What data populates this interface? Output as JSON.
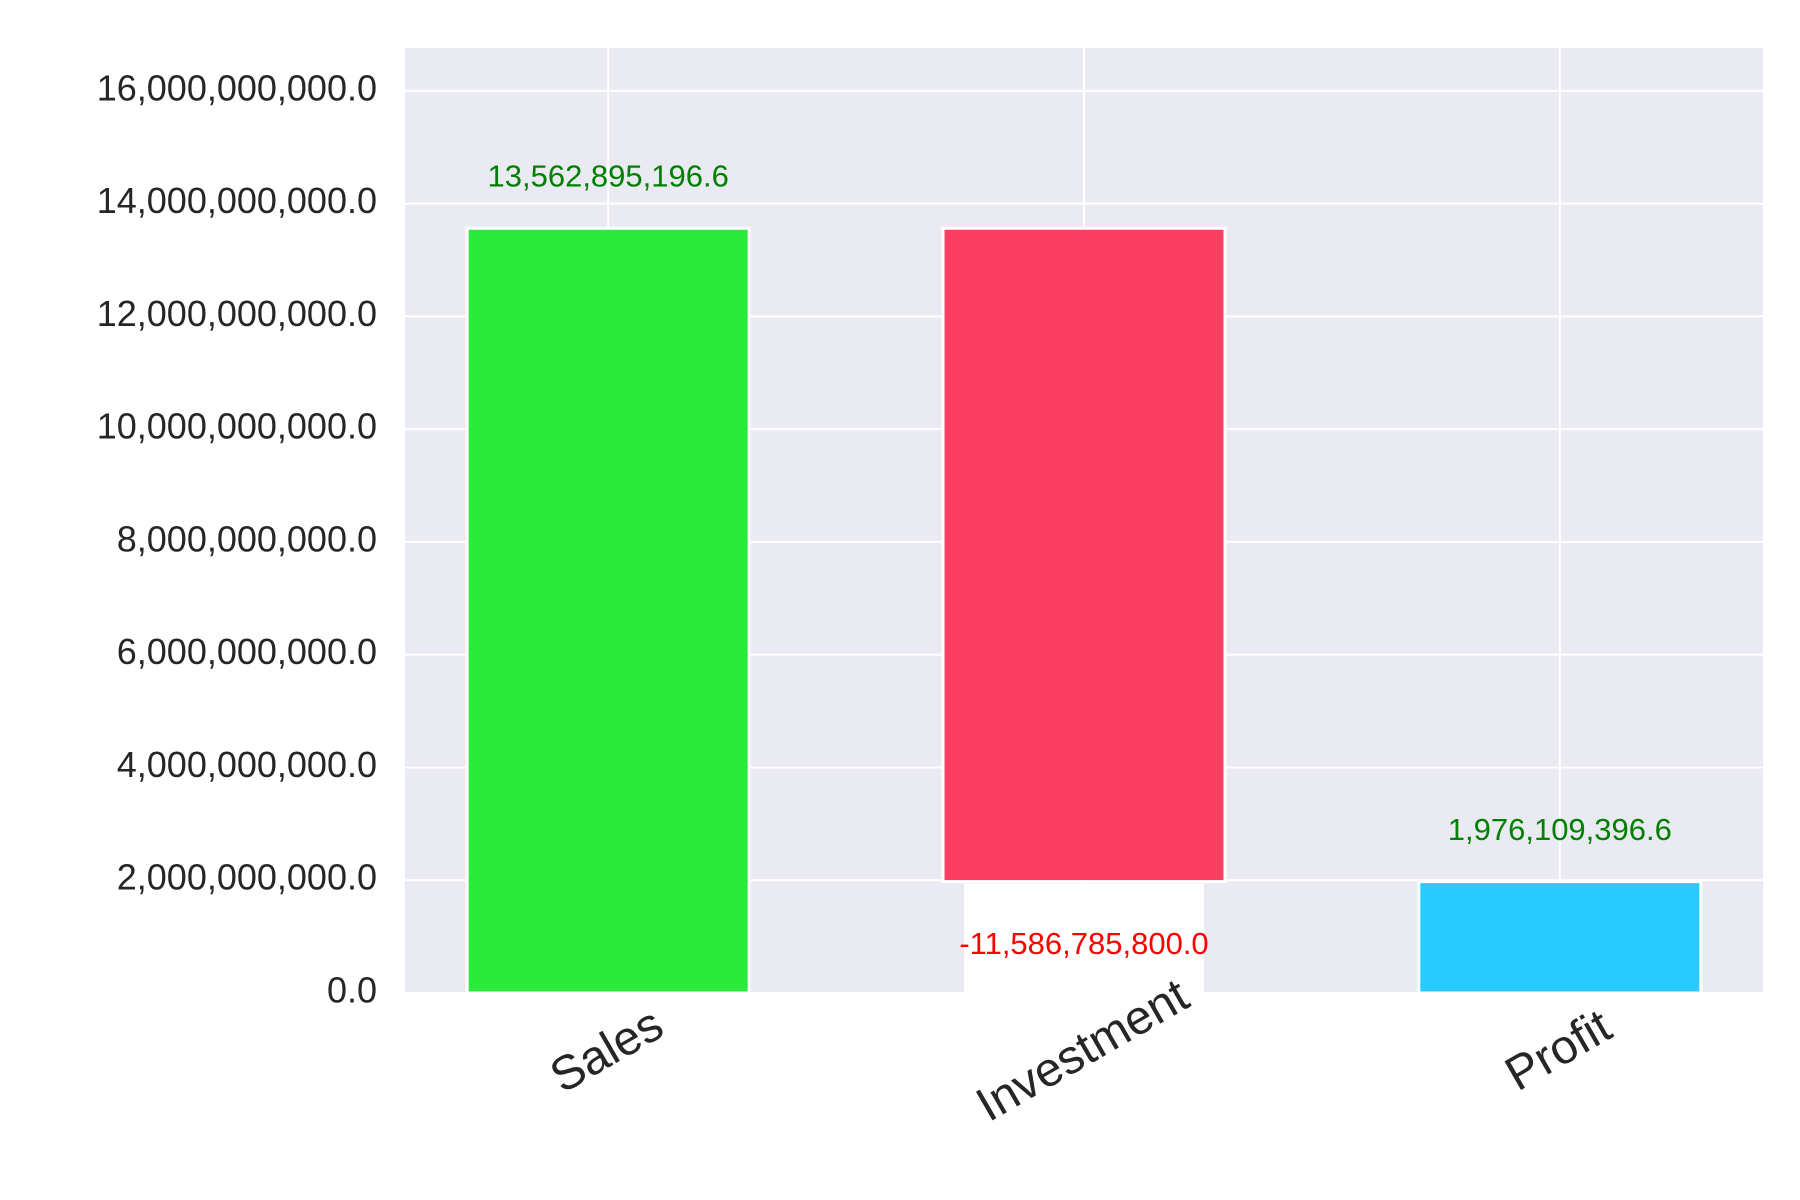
{
  "chart_data": {
    "type": "waterfall",
    "categories": [
      "Sales",
      "Investment",
      "Profit"
    ],
    "values": [
      13562895196.6,
      -11586785800.0,
      1976109396.6
    ],
    "value_labels": [
      "13,562,895,196.6",
      "-11,586,785,800.0",
      "1,976,109,396.6"
    ],
    "measure": [
      "relative",
      "relative",
      "total"
    ],
    "colors": [
      "#2aeb3b",
      "#fc3e63",
      "#27cbfd"
    ],
    "label_colors": [
      "#008000",
      "#ff0000",
      "#008000"
    ],
    "ylim": [
      0,
      16760000000
    ],
    "yticks": [
      {
        "value": 0,
        "label": "0.0"
      },
      {
        "value": 2000000000,
        "label": "2,000,000,000.0"
      },
      {
        "value": 4000000000,
        "label": "4,000,000,000.0"
      },
      {
        "value": 6000000000,
        "label": "6,000,000,000.0"
      },
      {
        "value": 8000000000,
        "label": "8,000,000,000.0"
      },
      {
        "value": 10000000000,
        "label": "10,000,000,000.0"
      },
      {
        "value": 12000000000,
        "label": "12,000,000,000.0"
      },
      {
        "value": 14000000000,
        "label": "14,000,000,000.0"
      },
      {
        "value": 16000000000,
        "label": "16,000,000,000.0"
      }
    ],
    "grid": true
  }
}
